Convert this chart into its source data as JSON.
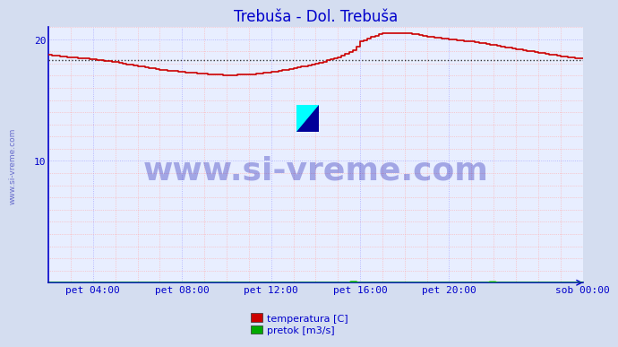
{
  "title": "Trebuša - Dol. Trebuša",
  "title_color": "#0000cc",
  "bg_color": "#d4ddf0",
  "plot_bg_color": "#e8eeff",
  "grid_major_color": "#aaaaff",
  "grid_minor_color": "#ffaaaa",
  "ylim": [
    0,
    21
  ],
  "ytick_positions": [
    10,
    20
  ],
  "ytick_labels": [
    "10",
    "20"
  ],
  "xlim": [
    0,
    288
  ],
  "xtick_positions": [
    24,
    72,
    120,
    168,
    216,
    288
  ],
  "xtick_labels": [
    "pet 04:00",
    "pet 08:00",
    "pet 12:00",
    "pet 16:00",
    "pet 20:00",
    "sob 00:00"
  ],
  "watermark_text": "www.si-vreme.com",
  "watermark_color": "#0000aa",
  "watermark_alpha": 0.3,
  "axis_color": "#0000cc",
  "temp_color": "#cc0000",
  "flow_color": "#00aa00",
  "avg_line_color": "#cc0000",
  "avg_value": 18.3,
  "legend_labels": [
    "temperatura [C]",
    "pretok [m3/s]"
  ],
  "legend_colors": [
    "#cc0000",
    "#00aa00"
  ],
  "side_text": "www.si-vreme.com"
}
